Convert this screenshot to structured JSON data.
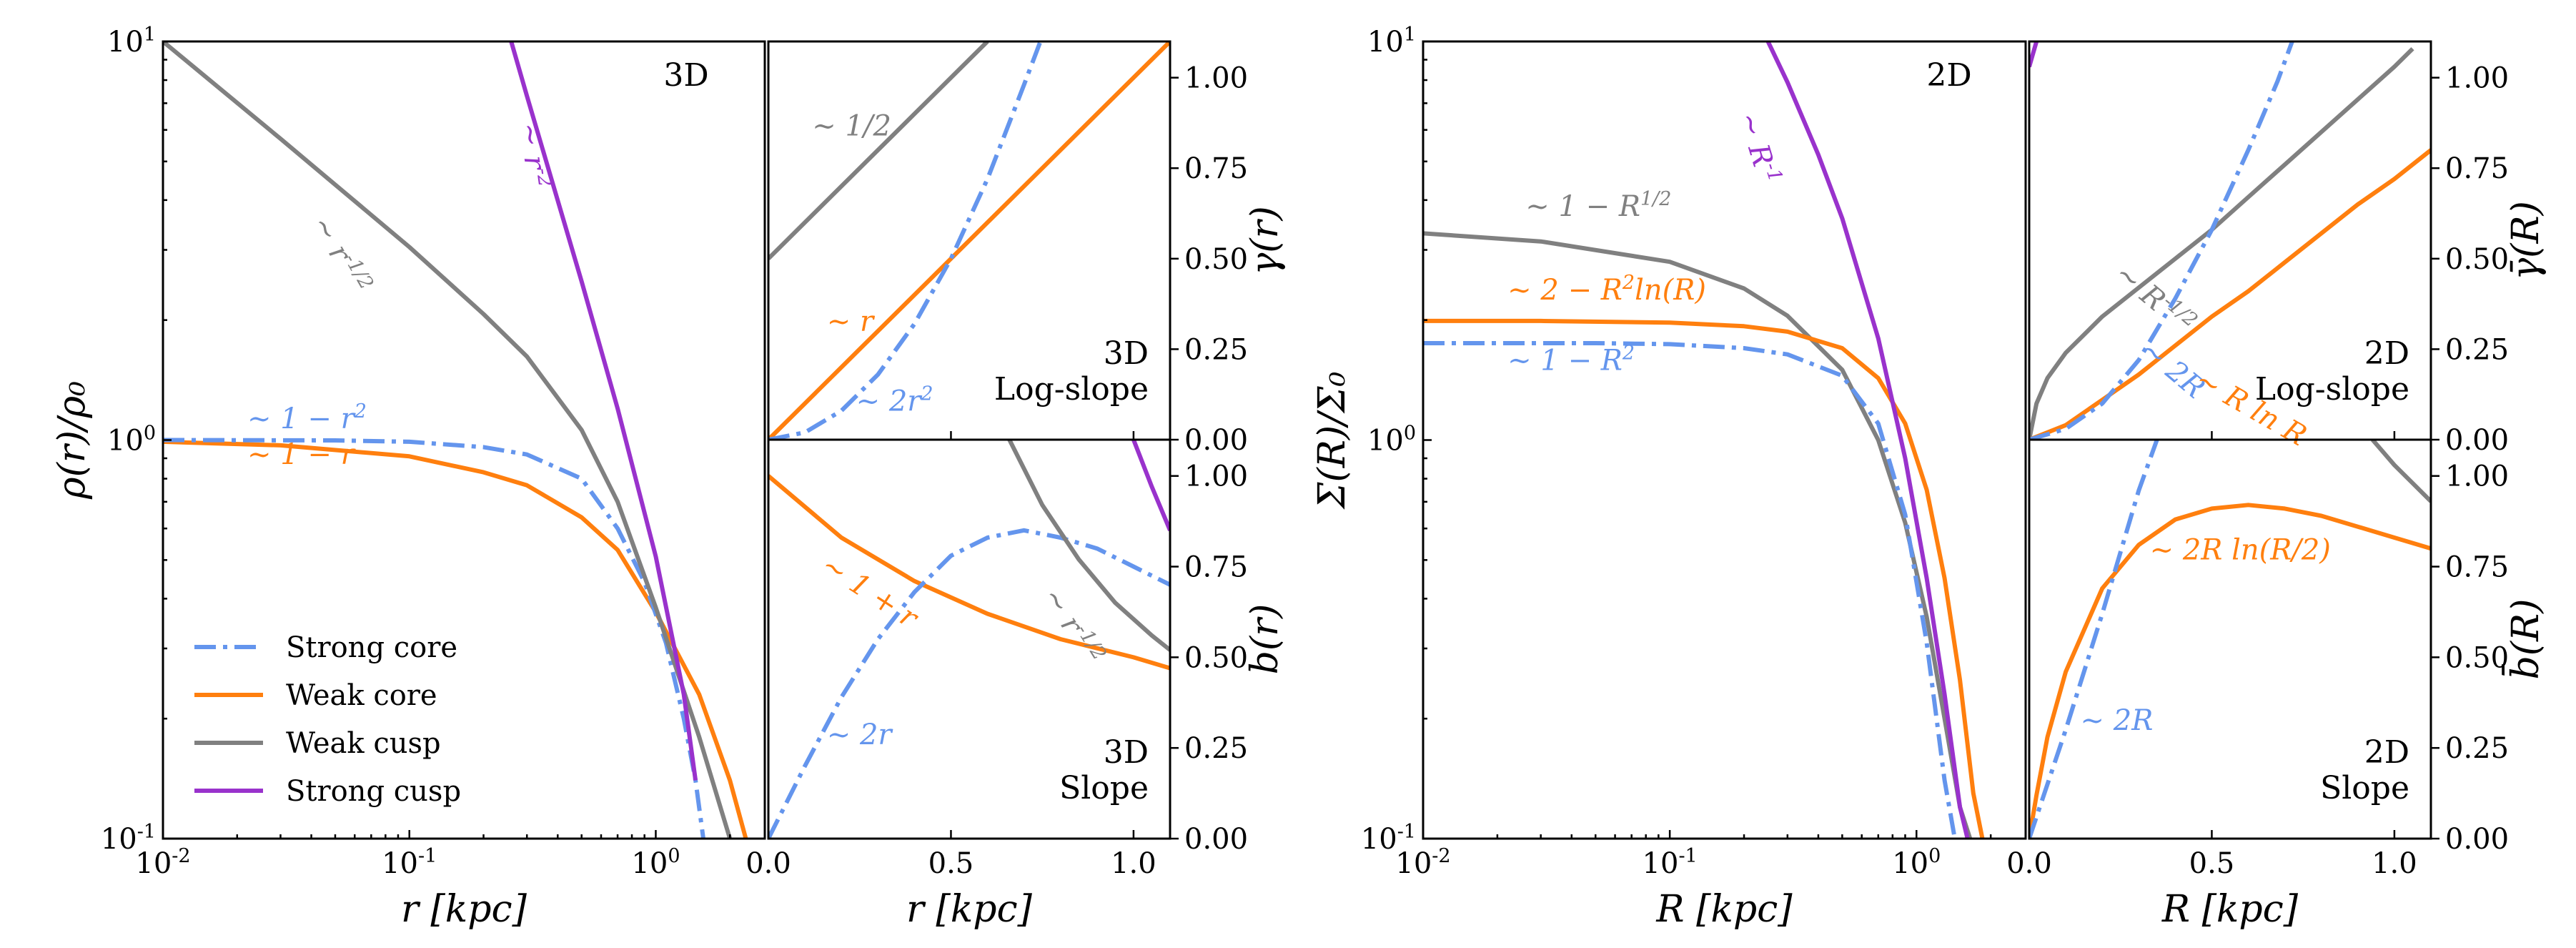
{
  "colors": {
    "strong_core": "#6495ED",
    "weak_core": "#FF7F0E",
    "weak_cusp": "#808080",
    "strong_cusp": "#9932CC"
  },
  "legend": [
    {
      "key": "strong_core",
      "label": "Strong core",
      "dash": true
    },
    {
      "key": "weak_core",
      "label": "Weak core",
      "dash": false
    },
    {
      "key": "weak_cusp",
      "label": "Weak cusp",
      "dash": false
    },
    {
      "key": "strong_cusp",
      "label": "Strong cusp",
      "dash": false
    }
  ],
  "chart_data": [
    {
      "id": "p3d_dens",
      "type": "line",
      "title": "",
      "panel_label": "3D",
      "xscale": "log",
      "yscale": "log",
      "xlim": [
        0.01,
        2.77
      ],
      "ylim": [
        0.1,
        10
      ],
      "xlabel": "r [kpc]",
      "ylabel": "ρ(r)/ρ₀",
      "ylabel_side": "left",
      "xticks": [
        {
          "v": 0.01,
          "l": "10^{-2}"
        },
        {
          "v": 0.1,
          "l": "10^{-1}"
        },
        {
          "v": 1,
          "l": "10^{0}"
        }
      ],
      "yticks": [
        {
          "v": 0.1,
          "l": "10^{-1}"
        },
        {
          "v": 1,
          "l": "10^{0}"
        },
        {
          "v": 10,
          "l": "10^{1}"
        }
      ],
      "series": [
        {
          "key": "weak_core",
          "x": [
            0.01,
            0.03,
            0.1,
            0.2,
            0.3,
            0.5,
            0.7,
            1.0,
            1.5,
            2.0,
            2.32
          ],
          "y": [
            0.99,
            0.97,
            0.91,
            0.83,
            0.77,
            0.64,
            0.53,
            0.37,
            0.23,
            0.14,
            0.1
          ]
        },
        {
          "key": "strong_core",
          "x": [
            0.01,
            0.05,
            0.1,
            0.2,
            0.3,
            0.5,
            0.7,
            0.9,
            1.1,
            1.3,
            1.45,
            1.56
          ],
          "y": [
            1.0,
            0.998,
            0.99,
            0.96,
            0.92,
            0.8,
            0.6,
            0.44,
            0.31,
            0.2,
            0.14,
            0.1
          ]
        },
        {
          "key": "weak_cusp",
          "x": [
            0.01,
            0.03,
            0.1,
            0.2,
            0.3,
            0.5,
            0.7,
            1.0,
            1.5,
            2.0
          ],
          "y": [
            10,
            5.7,
            3.05,
            2.07,
            1.62,
            1.06,
            0.7,
            0.38,
            0.18,
            0.1
          ]
        },
        {
          "key": "strong_cusp",
          "x": [
            0.259,
            0.3,
            0.5,
            0.7,
            1.0,
            1.3,
            1.45
          ],
          "y": [
            10,
            7.3,
            2.5,
            1.2,
            0.51,
            0.23,
            0.14
          ]
        }
      ],
      "annotations": [
        {
          "text": "∼ r^{-1/2}",
          "x": 0.04,
          "y": 3.5,
          "key": "weak_cusp",
          "rot": 60
        },
        {
          "text": "∼ r^{-2}",
          "x": 0.28,
          "y": 6.2,
          "key": "strong_cusp",
          "rot": 82
        },
        {
          "text": "∼ 1 − r^{2}",
          "x": 0.022,
          "y": 1.07,
          "key": "strong_core",
          "rot": 0
        },
        {
          "text": "∼ 1 − r",
          "x": 0.022,
          "y": 0.87,
          "key": "weak_core",
          "rot": 0
        }
      ]
    },
    {
      "id": "p3d_gamma",
      "type": "line",
      "title": "",
      "panel_label": [
        "3D",
        "Log-slope"
      ],
      "xscale": "linear",
      "yscale": "linear",
      "xlim": [
        0.0,
        1.1
      ],
      "ylim": [
        0.0,
        1.1
      ],
      "xlabel": "",
      "ylabel": "γ(r)",
      "ylabel_side": "right",
      "xticks": [
        {
          "v": 0.0,
          "l": ""
        },
        {
          "v": 0.5,
          "l": ""
        },
        {
          "v": 1.0,
          "l": ""
        }
      ],
      "yticks": [
        {
          "v": 0.0,
          "l": "0.00"
        },
        {
          "v": 0.25,
          "l": "0.25"
        },
        {
          "v": 0.5,
          "l": "0.50"
        },
        {
          "v": 0.75,
          "l": "0.75"
        },
        {
          "v": 1.0,
          "l": "1.00"
        }
      ],
      "series": [
        {
          "key": "weak_core",
          "x": [
            0.0,
            0.25,
            0.5,
            0.75,
            1.0,
            1.1
          ],
          "y": [
            0.0,
            0.25,
            0.5,
            0.75,
            1.0,
            1.1
          ]
        },
        {
          "key": "strong_core",
          "x": [
            0.0,
            0.1,
            0.2,
            0.3,
            0.4,
            0.5,
            0.6,
            0.65,
            0.7,
            0.745
          ],
          "y": [
            0.0,
            0.02,
            0.08,
            0.18,
            0.32,
            0.5,
            0.72,
            0.85,
            0.98,
            1.1
          ]
        },
        {
          "key": "weak_cusp",
          "x": [
            0.0,
            0.2,
            0.4,
            0.6
          ],
          "y": [
            0.5,
            0.7,
            0.9,
            1.1
          ]
        }
      ],
      "annotations": [
        {
          "text": "∼ 1/2",
          "x": 0.12,
          "y": 0.84,
          "key": "weak_cusp",
          "rot": 0
        },
        {
          "text": "∼ r",
          "x": 0.16,
          "y": 0.3,
          "key": "weak_core",
          "rot": 0
        },
        {
          "text": "∼ 2r^{2}",
          "x": 0.24,
          "y": 0.08,
          "key": "strong_core",
          "rot": 0
        }
      ]
    },
    {
      "id": "p3d_b",
      "type": "line",
      "title": "",
      "panel_label": [
        "3D",
        "Slope"
      ],
      "xscale": "linear",
      "yscale": "linear",
      "xlim": [
        0.0,
        1.1
      ],
      "ylim": [
        0.0,
        1.1
      ],
      "xlabel": "r [kpc]",
      "ylabel": "b(r)",
      "ylabel_side": "right",
      "xticks": [
        {
          "v": 0.0,
          "l": "0.0"
        },
        {
          "v": 0.5,
          "l": "0.5"
        },
        {
          "v": 1.0,
          "l": "1.0"
        }
      ],
      "yticks": [
        {
          "v": 0.0,
          "l": "0.00"
        },
        {
          "v": 0.25,
          "l": "0.25"
        },
        {
          "v": 0.5,
          "l": "0.50"
        },
        {
          "v": 0.75,
          "l": "0.75"
        },
        {
          "v": 1.0,
          "l": "1.00"
        }
      ],
      "series": [
        {
          "key": "weak_core",
          "x": [
            0.0,
            0.2,
            0.4,
            0.6,
            0.8,
            1.0,
            1.1
          ],
          "y": [
            1.0,
            0.83,
            0.71,
            0.62,
            0.55,
            0.5,
            0.47
          ]
        },
        {
          "key": "strong_core",
          "x": [
            0.0,
            0.1,
            0.2,
            0.3,
            0.4,
            0.5,
            0.6,
            0.7,
            0.8,
            0.9,
            1.0,
            1.1
          ],
          "y": [
            0.0,
            0.2,
            0.39,
            0.55,
            0.68,
            0.78,
            0.83,
            0.85,
            0.83,
            0.8,
            0.75,
            0.7
          ]
        },
        {
          "key": "weak_cusp",
          "x": [
            0.66,
            0.75,
            0.85,
            0.95,
            1.05,
            1.1
          ],
          "y": [
            1.1,
            0.92,
            0.77,
            0.65,
            0.56,
            0.52
          ]
        },
        {
          "key": "strong_cusp",
          "x": [
            1.0,
            1.05,
            1.1
          ],
          "y": [
            1.1,
            0.97,
            0.85
          ]
        }
      ],
      "annotations": [
        {
          "text": "∼ 1 + r",
          "x": 0.14,
          "y": 0.74,
          "key": "weak_core",
          "rot": 33
        },
        {
          "text": "∼ r^{-1/2}",
          "x": 0.75,
          "y": 0.67,
          "key": "weak_cusp",
          "rot": 58
        },
        {
          "text": "∼ 2r",
          "x": 0.16,
          "y": 0.26,
          "key": "strong_core",
          "rot": 0
        }
      ]
    },
    {
      "id": "p2d_dens",
      "type": "line",
      "title": "",
      "panel_label": "2D",
      "xscale": "log",
      "yscale": "log",
      "xlim": [
        0.01,
        2.77
      ],
      "ylim": [
        0.1,
        10
      ],
      "xlabel": "R [kpc]",
      "ylabel": "Σ(R)/Σ₀",
      "ylabel_side": "left",
      "xticks": [
        {
          "v": 0.01,
          "l": "10^{-2}"
        },
        {
          "v": 0.1,
          "l": "10^{-1}"
        },
        {
          "v": 1,
          "l": "10^{0}"
        }
      ],
      "yticks": [
        {
          "v": 0.1,
          "l": "10^{-1}"
        },
        {
          "v": 1,
          "l": "10^{0}"
        },
        {
          "v": 10,
          "l": "10^{1}"
        }
      ],
      "series": [
        {
          "key": "weak_cusp",
          "x": [
            0.01,
            0.03,
            0.1,
            0.2,
            0.3,
            0.5,
            0.7,
            0.9,
            1.1,
            1.3,
            1.5,
            1.65
          ],
          "y": [
            3.3,
            3.15,
            2.8,
            2.4,
            2.05,
            1.5,
            1.0,
            0.62,
            0.36,
            0.2,
            0.12,
            0.1
          ]
        },
        {
          "key": "weak_core",
          "x": [
            0.01,
            0.03,
            0.1,
            0.2,
            0.3,
            0.5,
            0.7,
            0.9,
            1.1,
            1.3,
            1.5,
            1.7,
            1.85
          ],
          "y": [
            1.99,
            1.99,
            1.97,
            1.93,
            1.87,
            1.7,
            1.43,
            1.1,
            0.75,
            0.45,
            0.25,
            0.13,
            0.1
          ]
        },
        {
          "key": "strong_core",
          "x": [
            0.01,
            0.05,
            0.1,
            0.2,
            0.3,
            0.5,
            0.7,
            0.9,
            1.1,
            1.3,
            1.43
          ],
          "y": [
            1.75,
            1.75,
            1.74,
            1.7,
            1.64,
            1.45,
            1.1,
            0.65,
            0.31,
            0.14,
            0.1
          ]
        },
        {
          "key": "strong_cusp",
          "x": [
            0.25,
            0.3,
            0.4,
            0.5,
            0.7,
            0.9,
            1.1,
            1.3,
            1.5,
            1.61
          ],
          "y": [
            10,
            7.9,
            5.2,
            3.6,
            1.8,
            0.9,
            0.45,
            0.23,
            0.12,
            0.1
          ]
        }
      ],
      "annotations": [
        {
          "text": "∼ 1 − R^{1/2}",
          "x": 0.026,
          "y": 3.65,
          "key": "weak_cusp",
          "rot": 0
        },
        {
          "text": "∼ R^{-1}",
          "x": 0.19,
          "y": 6.5,
          "key": "strong_cusp",
          "rot": 73
        },
        {
          "text": "∼ 2 − R^{2}ln(R)",
          "x": 0.022,
          "y": 2.25,
          "key": "weak_core",
          "rot": 0
        },
        {
          "text": "∼ 1 − R^{2}",
          "x": 0.022,
          "y": 1.5,
          "key": "strong_core",
          "rot": 0
        }
      ]
    },
    {
      "id": "p2d_gamma",
      "type": "line",
      "title": "",
      "panel_label": [
        "2D",
        "Log-slope"
      ],
      "xscale": "linear",
      "yscale": "linear",
      "xlim": [
        0.0,
        1.1
      ],
      "ylim": [
        0.0,
        1.1
      ],
      "xlabel": "",
      "ylabel": "γ̄(R)",
      "ylabel_side": "right",
      "xticks": [
        {
          "v": 0.0,
          "l": ""
        },
        {
          "v": 0.5,
          "l": ""
        },
        {
          "v": 1.0,
          "l": ""
        }
      ],
      "yticks": [
        {
          "v": 0.0,
          "l": "0.00"
        },
        {
          "v": 0.25,
          "l": "0.25"
        },
        {
          "v": 0.5,
          "l": "0.50"
        },
        {
          "v": 0.75,
          "l": "0.75"
        },
        {
          "v": 1.0,
          "l": "1.00"
        }
      ],
      "series": [
        {
          "key": "weak_cusp",
          "x": [
            0.0,
            0.02,
            0.05,
            0.1,
            0.2,
            0.3,
            0.4,
            0.5,
            0.6,
            0.7,
            0.8,
            0.9,
            1.0,
            1.05
          ],
          "y": [
            0.0,
            0.1,
            0.17,
            0.24,
            0.34,
            0.42,
            0.5,
            0.58,
            0.67,
            0.76,
            0.85,
            0.94,
            1.03,
            1.08
          ]
        },
        {
          "key": "weak_core",
          "x": [
            0.0,
            0.1,
            0.2,
            0.3,
            0.4,
            0.5,
            0.6,
            0.7,
            0.8,
            0.9,
            1.0,
            1.1
          ],
          "y": [
            0.0,
            0.04,
            0.11,
            0.18,
            0.26,
            0.34,
            0.41,
            0.49,
            0.57,
            0.65,
            0.72,
            0.8
          ]
        },
        {
          "key": "strong_core",
          "x": [
            0.0,
            0.1,
            0.2,
            0.3,
            0.4,
            0.5,
            0.6,
            0.68,
            0.72
          ],
          "y": [
            0.0,
            0.03,
            0.1,
            0.22,
            0.39,
            0.58,
            0.8,
            0.99,
            1.1
          ]
        },
        {
          "key": "strong_cusp",
          "x": [
            0.0,
            0.02
          ],
          "y": [
            1.03,
            1.1
          ]
        }
      ],
      "annotations": [
        {
          "text": "∼ R^{-1/2}",
          "x": 0.23,
          "y": 0.45,
          "key": "weak_cusp",
          "rot": 40
        },
        {
          "text": "∼ 2R",
          "x": 0.3,
          "y": 0.24,
          "key": "strong_core",
          "rot": 40
        },
        {
          "text": "∼ R ln R",
          "x": 0.45,
          "y": 0.15,
          "key": "weak_core",
          "rot": 30
        }
      ]
    },
    {
      "id": "p2d_b",
      "type": "line",
      "title": "",
      "panel_label": [
        "2D",
        "Slope"
      ],
      "xscale": "linear",
      "yscale": "linear",
      "xlim": [
        0.0,
        1.1
      ],
      "ylim": [
        0.0,
        1.1
      ],
      "xlabel": "R [kpc]",
      "ylabel": "b̄(R)",
      "ylabel_side": "right",
      "xticks": [
        {
          "v": 0.0,
          "l": "0.0"
        },
        {
          "v": 0.5,
          "l": "0.5"
        },
        {
          "v": 1.0,
          "l": "1.0"
        }
      ],
      "yticks": [
        {
          "v": 0.0,
          "l": "0.00"
        },
        {
          "v": 0.25,
          "l": "0.25"
        },
        {
          "v": 0.5,
          "l": "0.50"
        },
        {
          "v": 0.75,
          "l": "0.75"
        },
        {
          "v": 1.0,
          "l": "1.00"
        }
      ],
      "series": [
        {
          "key": "weak_core",
          "x": [
            0.0,
            0.02,
            0.05,
            0.1,
            0.2,
            0.3,
            0.4,
            0.5,
            0.6,
            0.7,
            0.8,
            0.9,
            1.0,
            1.1
          ],
          "y": [
            0.0,
            0.12,
            0.28,
            0.46,
            0.69,
            0.81,
            0.88,
            0.91,
            0.92,
            0.91,
            0.89,
            0.86,
            0.83,
            0.8
          ]
        },
        {
          "key": "strong_core",
          "x": [
            0.0,
            0.1,
            0.2,
            0.3,
            0.35
          ],
          "y": [
            0.0,
            0.3,
            0.62,
            0.96,
            1.1
          ]
        },
        {
          "key": "weak_cusp",
          "x": [
            0.94,
            1.0,
            1.05,
            1.1
          ],
          "y": [
            1.1,
            1.03,
            0.98,
            0.93
          ]
        }
      ],
      "annotations": [
        {
          "text": "∼ 2R ln(R/2)",
          "x": 0.33,
          "y": 0.77,
          "key": "weak_core",
          "rot": 0
        },
        {
          "text": "∼ 2R",
          "x": 0.14,
          "y": 0.3,
          "key": "strong_core",
          "rot": 0
        }
      ]
    }
  ]
}
